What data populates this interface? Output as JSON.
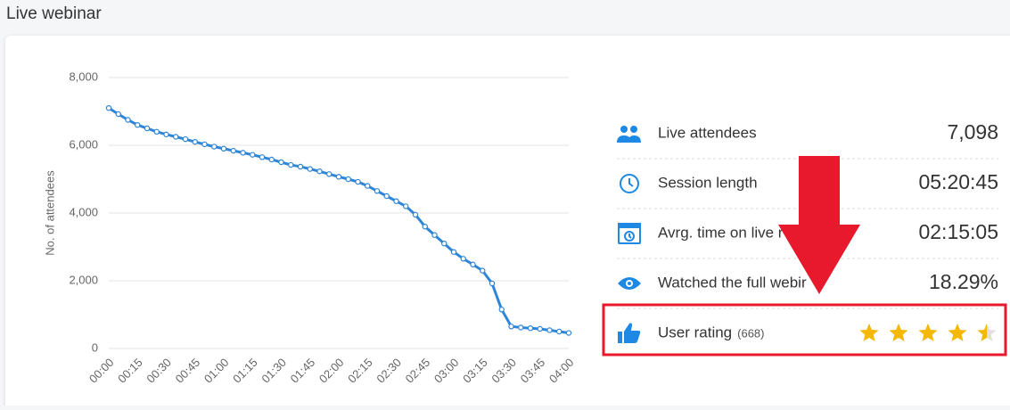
{
  "header": {
    "title": "Live webinar"
  },
  "chart_data": {
    "type": "line",
    "ylabel": "No. of attendees",
    "color": "#2f86d6",
    "categories": [
      "00:00",
      null,
      null,
      "00:15",
      null,
      null,
      "00:30",
      null,
      null,
      "00:45",
      null,
      null,
      "01:00",
      null,
      null,
      "01:15",
      null,
      null,
      "01:30",
      null,
      null,
      "01:45",
      null,
      null,
      "02:00",
      null,
      null,
      "02:15",
      null,
      null,
      "02:30",
      null,
      null,
      "02:45",
      null,
      null,
      "03:00",
      null,
      null,
      "03:15",
      null,
      null,
      "03:30",
      null,
      null,
      "03:45",
      null,
      null,
      "04:00"
    ],
    "values": [
      7100,
      6920,
      6750,
      6600,
      6500,
      6400,
      6320,
      6250,
      6180,
      6100,
      6030,
      5960,
      5900,
      5840,
      5780,
      5720,
      5650,
      5580,
      5500,
      5420,
      5370,
      5300,
      5230,
      5150,
      5070,
      5000,
      4920,
      4800,
      4650,
      4500,
      4350,
      4200,
      3950,
      3600,
      3350,
      3100,
      2850,
      2650,
      2480,
      2300,
      1920,
      1150,
      650,
      620,
      600,
      580,
      540,
      500,
      460
    ],
    "ylim": [
      0,
      8000
    ],
    "yticks": [
      {
        "value": 0,
        "label": "0"
      },
      {
        "value": 2000,
        "label": "2,000"
      },
      {
        "value": 4000,
        "label": "4,000"
      },
      {
        "value": 6000,
        "label": "6,000"
      },
      {
        "value": 8000,
        "label": "8,000"
      }
    ],
    "grid": true
  },
  "stats": {
    "rows": [
      {
        "label": "Live attendees",
        "value": "7,098"
      },
      {
        "label": "Session length",
        "value": "05:20:45"
      },
      {
        "label": "Avrg. time on live r",
        "value": "02:15:05"
      },
      {
        "label": "Watched the full webir",
        "value": "18.29%"
      }
    ],
    "rating": {
      "label": "User rating",
      "count": "(668)",
      "stars": 4.5,
      "max": 5
    }
  }
}
